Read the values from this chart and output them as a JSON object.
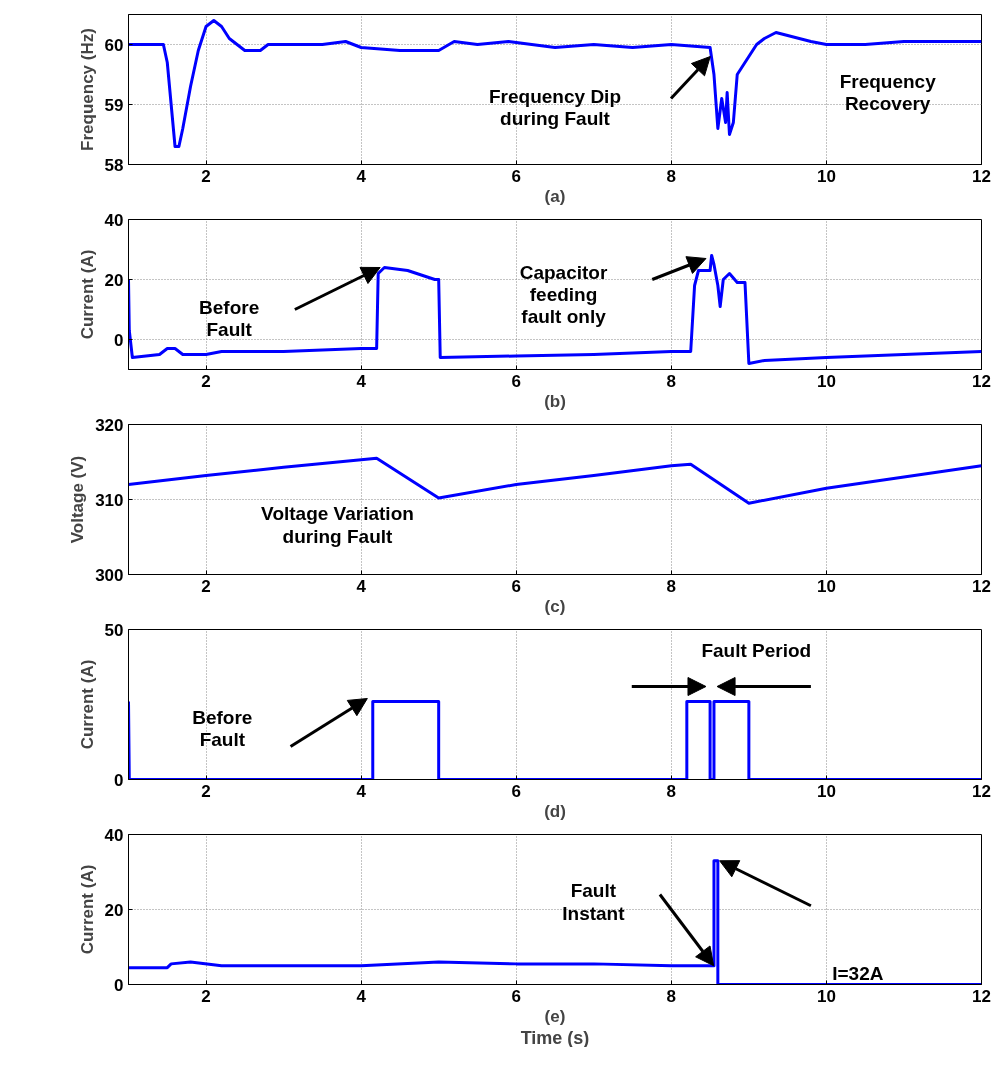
{
  "chart_data": [
    {
      "type": "line",
      "ylabel": "Frequency (Hz)",
      "xlim": [
        1,
        12
      ],
      "xticks": [
        2,
        4,
        6,
        8,
        10,
        12
      ],
      "ylim": [
        58,
        60.5
      ],
      "yticks": [
        58,
        59,
        60
      ],
      "grid": true,
      "x": [
        1,
        1.45,
        1.5,
        1.55,
        1.6,
        1.65,
        1.7,
        1.8,
        1.9,
        2,
        2.1,
        2.2,
        2.3,
        2.5,
        2.7,
        2.8,
        3.5,
        3.8,
        4,
        4.5,
        5,
        5.2,
        5.5,
        5.9,
        6.5,
        7,
        7.5,
        8,
        8.5,
        8.55,
        8.6,
        8.65,
        8.7,
        8.72,
        8.75,
        8.8,
        8.85,
        8.9,
        9,
        9.1,
        9.2,
        9.35,
        9.5,
        9.8,
        10,
        10.5,
        11,
        12
      ],
      "series": [
        {
          "color": "#0000ff",
          "values": [
            60,
            60,
            59.7,
            59,
            58.3,
            58.3,
            58.6,
            59.3,
            59.9,
            60.3,
            60.4,
            60.3,
            60.1,
            59.9,
            59.9,
            60,
            60,
            60.05,
            59.95,
            59.9,
            59.9,
            60.05,
            60,
            60.05,
            59.95,
            60,
            59.95,
            60,
            59.95,
            59.5,
            58.6,
            59.1,
            58.7,
            59.2,
            58.5,
            58.7,
            59.5,
            59.6,
            59.8,
            60,
            60.1,
            60.2,
            60.15,
            60.05,
            60,
            60,
            60.05,
            60.05
          ]
        }
      ],
      "annotations": [
        "(a)",
        "Frequency Dip\nduring Fault",
        "Frequency\nRecovery"
      ]
    },
    {
      "type": "line",
      "ylabel": "Current (A)",
      "xlim": [
        1,
        12
      ],
      "xticks": [
        2,
        4,
        6,
        8,
        10,
        12
      ],
      "ylim": [
        -10,
        40
      ],
      "yticks": [
        0,
        20,
        40
      ],
      "grid": true,
      "x": [
        1,
        1.01,
        1.05,
        1.4,
        1.5,
        1.6,
        1.7,
        2,
        2.2,
        3,
        4,
        4.2,
        4.22,
        4.3,
        4.6,
        4.95,
        5,
        5.02,
        6,
        7,
        8,
        8.25,
        8.3,
        8.35,
        8.5,
        8.52,
        8.55,
        8.6,
        8.63,
        8.67,
        8.75,
        8.85,
        8.95,
        9,
        9.2,
        10,
        11,
        12
      ],
      "series": [
        {
          "color": "#0000ff",
          "values": [
            20,
            3,
            -6,
            -5,
            -3,
            -3,
            -5,
            -5,
            -4,
            -4,
            -3,
            -3,
            22,
            24,
            23,
            20,
            20,
            -6,
            -5.5,
            -5,
            -4,
            -4,
            18,
            23,
            23,
            28,
            25,
            18,
            11,
            20,
            22,
            19,
            19,
            -8,
            -7,
            -6,
            -5,
            -4
          ]
        }
      ],
      "annotations": [
        "(b)",
        "Before\nFault",
        "Capacitor\nfeeding\nfault only"
      ]
    },
    {
      "type": "line",
      "ylabel": "Voltage (V)",
      "xlim": [
        1,
        12
      ],
      "xticks": [
        2,
        4,
        6,
        8,
        10,
        12
      ],
      "ylim": [
        300,
        320
      ],
      "yticks": [
        300,
        310,
        320
      ],
      "grid": true,
      "x": [
        1,
        2,
        3,
        4,
        4.2,
        5,
        6,
        7,
        8,
        8.25,
        9,
        10,
        11,
        12
      ],
      "series": [
        {
          "color": "#0000ff",
          "values": [
            312,
            313.2,
            314.3,
            315.3,
            315.5,
            310.2,
            312,
            313.2,
            314.5,
            314.7,
            309.5,
            311.5,
            313,
            314.5
          ]
        }
      ],
      "annotations": [
        "(c)",
        "Voltage Variation\nduring Fault"
      ]
    },
    {
      "type": "line",
      "ylabel": "Current (A)",
      "xlim": [
        1,
        12
      ],
      "xticks": [
        2,
        4,
        6,
        8,
        10,
        12
      ],
      "ylim": [
        0,
        50
      ],
      "yticks": [
        0,
        50
      ],
      "grid": true,
      "x": [
        1,
        1.01,
        4.15,
        4.15,
        5,
        5,
        8.2,
        8.2,
        8.5,
        8.5,
        8.55,
        8.55,
        9,
        9,
        12
      ],
      "series": [
        {
          "color": "#0000ff",
          "values": [
            26,
            0,
            0,
            26,
            26,
            0,
            0,
            26,
            26,
            0,
            0,
            26,
            26,
            0,
            0
          ]
        }
      ],
      "annotations": [
        "(d)",
        "Before\nFault",
        "Fault Period"
      ]
    },
    {
      "type": "line",
      "ylabel": "Current (A)",
      "xlabel": "Time (s)",
      "xlim": [
        1,
        12
      ],
      "xticks": [
        2,
        4,
        6,
        8,
        10,
        12
      ],
      "ylim": [
        0,
        40
      ],
      "yticks": [
        0,
        20,
        40
      ],
      "grid": true,
      "x": [
        1,
        1.5,
        1.55,
        1.8,
        2.2,
        4,
        5,
        6,
        7,
        8,
        8.55,
        8.55,
        8.6,
        8.6,
        12
      ],
      "series": [
        {
          "color": "#0000ff",
          "values": [
            4.5,
            4.5,
            5.5,
            6,
            5,
            5,
            6,
            5.5,
            5.5,
            5,
            5,
            33,
            33,
            0,
            0
          ]
        }
      ],
      "annotations": [
        "(e)",
        "Fault\nInstant",
        "I=32A"
      ]
    }
  ]
}
